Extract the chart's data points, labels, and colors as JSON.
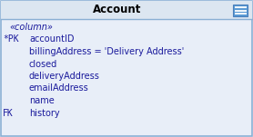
{
  "title": "Account",
  "header_bg": "#dce6f1",
  "body_bg": "#e8eef8",
  "border_color": "#8aafd4",
  "title_color": "#000000",
  "text_color": "#1a1a9c",
  "rows": [
    {
      "prefix": "",
      "indent": false,
      "text": "«column»",
      "italic": true
    },
    {
      "prefix": "*PK",
      "indent": false,
      "text": "accountID",
      "italic": false
    },
    {
      "prefix": "",
      "indent": true,
      "text": "billingAddress = 'Delivery Address'",
      "italic": false
    },
    {
      "prefix": "",
      "indent": true,
      "text": "closed",
      "italic": false
    },
    {
      "prefix": "",
      "indent": true,
      "text": "deliveryAddress",
      "italic": false
    },
    {
      "prefix": "",
      "indent": true,
      "text": "emailAddress",
      "italic": false
    },
    {
      "prefix": "",
      "indent": true,
      "text": "name",
      "italic": false
    },
    {
      "prefix": "FK",
      "indent": false,
      "text": "history",
      "italic": false
    }
  ],
  "icon_bg": "#5b9bd5",
  "icon_border": "#4a7fbb",
  "fig_width": 2.78,
  "fig_height": 1.51,
  "dpi": 100
}
